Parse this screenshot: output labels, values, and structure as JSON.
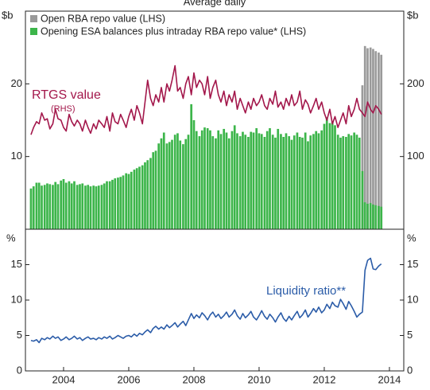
{
  "chart_data": [
    {
      "type": "bar",
      "title": "Average daily",
      "ylabel": "$b",
      "y2label": "$b",
      "legend": "top-left",
      "xlim": [
        2002.83,
        2014.44
      ],
      "ylim": [
        0,
        30
      ],
      "yticks": [
        10,
        20
      ],
      "y2lim": [
        0,
        300
      ],
      "y2ticks": [
        100,
        200
      ],
      "x": [
        2003,
        2003.08,
        2003.17,
        2003.25,
        2003.33,
        2003.42,
        2003.5,
        2003.58,
        2003.67,
        2003.75,
        2003.83,
        2003.92,
        2004,
        2004.08,
        2004.17,
        2004.25,
        2004.33,
        2004.42,
        2004.5,
        2004.58,
        2004.67,
        2004.75,
        2004.83,
        2004.92,
        2005,
        2005.08,
        2005.17,
        2005.25,
        2005.33,
        2005.42,
        2005.5,
        2005.58,
        2005.67,
        2005.75,
        2005.83,
        2005.92,
        2006,
        2006.08,
        2006.17,
        2006.25,
        2006.33,
        2006.42,
        2006.5,
        2006.58,
        2006.67,
        2006.75,
        2006.83,
        2006.92,
        2007,
        2007.08,
        2007.17,
        2007.25,
        2007.33,
        2007.42,
        2007.5,
        2007.58,
        2007.67,
        2007.75,
        2007.83,
        2007.92,
        2008,
        2008.08,
        2008.17,
        2008.25,
        2008.33,
        2008.42,
        2008.5,
        2008.58,
        2008.67,
        2008.75,
        2008.83,
        2008.92,
        2009,
        2009.08,
        2009.17,
        2009.25,
        2009.33,
        2009.42,
        2009.5,
        2009.58,
        2009.67,
        2009.75,
        2009.83,
        2009.92,
        2010,
        2010.08,
        2010.17,
        2010.25,
        2010.33,
        2010.42,
        2010.5,
        2010.58,
        2010.67,
        2010.75,
        2010.83,
        2010.92,
        2011,
        2011.08,
        2011.17,
        2011.25,
        2011.33,
        2011.42,
        2011.5,
        2011.58,
        2011.67,
        2011.75,
        2011.83,
        2011.92,
        2012,
        2012.08,
        2012.17,
        2012.25,
        2012.33,
        2012.42,
        2012.5,
        2012.58,
        2012.67,
        2012.75,
        2012.83,
        2012.92,
        2013,
        2013.08,
        2013.17,
        2013.25,
        2013.33,
        2013.42,
        2013.5,
        2013.58,
        2013.67,
        2013.75
      ],
      "series": [
        {
          "name": "Open RBA repo value (LHS)",
          "type": "bar",
          "color": "#9a9a9a",
          "x": [
            2013.17,
            2013.25,
            2013.33,
            2013.42,
            2013.5,
            2013.58,
            2013.67,
            2013.75
          ],
          "values": [
            19.8,
            25.2,
            24.9,
            25.0,
            24.8,
            24.5,
            24.3,
            24.0
          ]
        },
        {
          "name": "Opening ESA balances plus intraday RBA repo value* (LHS)",
          "type": "bar",
          "color": "#3cb54a",
          "values": [
            5.6,
            5.9,
            6.4,
            6.4,
            6.0,
            6.1,
            6.3,
            6.2,
            6.1,
            6.5,
            6.2,
            6.7,
            6.9,
            6.4,
            6.6,
            6.3,
            6.6,
            6.1,
            6.2,
            6.3,
            6.0,
            6.1,
            5.9,
            6.0,
            5.9,
            6.0,
            6.1,
            6.3,
            6.6,
            6.6,
            6.8,
            7.0,
            7.1,
            7.2,
            7.4,
            7.7,
            7.6,
            7.9,
            8.2,
            8.4,
            8.6,
            8.8,
            9.2,
            9.5,
            9.8,
            10.6,
            10.8,
            11.8,
            12.5,
            13.3,
            11.8,
            12.0,
            12.3,
            13.0,
            13.2,
            12.2,
            11.7,
            12.4,
            13.0,
            17.2,
            15.0,
            13.5,
            12.8,
            13.6,
            14.0,
            13.9,
            13.6,
            12.8,
            12.5,
            13.6,
            13.1,
            13.8,
            13.3,
            12.5,
            13.5,
            14.3,
            13.2,
            12.8,
            13.4,
            13.0,
            12.7,
            13.4,
            13.3,
            13.9,
            13.2,
            13.1,
            12.7,
            13.5,
            13.9,
            13.0,
            12.6,
            13.8,
            13.1,
            12.7,
            13.2,
            12.8,
            12.3,
            12.9,
            13.3,
            12.7,
            12.6,
            13.3,
            12.1,
            12.9,
            13.1,
            13.5,
            13.2,
            13.6,
            14.5,
            15.4,
            14.6,
            14.8,
            14.3,
            13.0,
            12.6,
            12.8,
            12.7,
            13.1,
            12.9,
            13.3,
            13.0,
            12.6,
            8.0,
            3.7,
            3.5,
            3.6,
            3.4,
            3.3,
            3.2,
            3.1
          ]
        },
        {
          "name": "RTGS value",
          "type": "line",
          "axis": "y2",
          "color": "#a3174b",
          "values": [
            130,
            140,
            148,
            145,
            160,
            150,
            152,
            138,
            145,
            165,
            152,
            150,
            140,
            135,
            158,
            148,
            142,
            150,
            145,
            135,
            150,
            140,
            132,
            145,
            138,
            150,
            145,
            140,
            155,
            135,
            160,
            148,
            145,
            158,
            150,
            140,
            155,
            165,
            150,
            170,
            160,
            145,
            175,
            205,
            180,
            170,
            185,
            175,
            195,
            175,
            200,
            190,
            205,
            225,
            190,
            195,
            180,
            200,
            210,
            185,
            215,
            195,
            205,
            200,
            185,
            210,
            180,
            195,
            205,
            185,
            175,
            190,
            170,
            185,
            175,
            190,
            165,
            180,
            170,
            160,
            175,
            165,
            180,
            170,
            175,
            185,
            170,
            165,
            180,
            172,
            190,
            168,
            175,
            165,
            180,
            170,
            185,
            170,
            175,
            190,
            165,
            178,
            172,
            160,
            170,
            180,
            165,
            175,
            160,
            150,
            165,
            145,
            155,
            140,
            150,
            160,
            145,
            170,
            155,
            165,
            180,
            165,
            160,
            155,
            175,
            165,
            160,
            170,
            165,
            158
          ]
        }
      ],
      "annotations": [
        "(RHS)"
      ]
    },
    {
      "type": "line",
      "ylabel": "%",
      "y2label": "%",
      "xlim": [
        2002.83,
        2014.44
      ],
      "xticks": [
        2004,
        2006,
        2008,
        2010,
        2012,
        2014
      ],
      "ylim": [
        0,
        20
      ],
      "yticks": [
        0,
        5,
        10,
        15
      ],
      "y2lim": [
        0,
        20
      ],
      "y2ticks": [
        0,
        5,
        10,
        15
      ],
      "x": [
        2003,
        2003.08,
        2003.17,
        2003.25,
        2003.33,
        2003.42,
        2003.5,
        2003.58,
        2003.67,
        2003.75,
        2003.83,
        2003.92,
        2004,
        2004.08,
        2004.17,
        2004.25,
        2004.33,
        2004.42,
        2004.5,
        2004.58,
        2004.67,
        2004.75,
        2004.83,
        2004.92,
        2005,
        2005.08,
        2005.17,
        2005.25,
        2005.33,
        2005.42,
        2005.5,
        2005.58,
        2005.67,
        2005.75,
        2005.83,
        2005.92,
        2006,
        2006.08,
        2006.17,
        2006.25,
        2006.33,
        2006.42,
        2006.5,
        2006.58,
        2006.67,
        2006.75,
        2006.83,
        2006.92,
        2007,
        2007.08,
        2007.17,
        2007.25,
        2007.33,
        2007.42,
        2007.5,
        2007.58,
        2007.67,
        2007.75,
        2007.83,
        2007.92,
        2008,
        2008.08,
        2008.17,
        2008.25,
        2008.33,
        2008.42,
        2008.5,
        2008.58,
        2008.67,
        2008.75,
        2008.83,
        2008.92,
        2009,
        2009.08,
        2009.17,
        2009.25,
        2009.33,
        2009.42,
        2009.5,
        2009.58,
        2009.67,
        2009.75,
        2009.83,
        2009.92,
        2010,
        2010.08,
        2010.17,
        2010.25,
        2010.33,
        2010.42,
        2010.5,
        2010.58,
        2010.67,
        2010.75,
        2010.83,
        2010.92,
        2011,
        2011.08,
        2011.17,
        2011.25,
        2011.33,
        2011.42,
        2011.5,
        2011.58,
        2011.67,
        2011.75,
        2011.83,
        2011.92,
        2012,
        2012.08,
        2012.17,
        2012.25,
        2012.33,
        2012.42,
        2012.5,
        2012.58,
        2012.67,
        2012.75,
        2012.83,
        2012.92,
        2013,
        2013.08,
        2013.17,
        2013.25,
        2013.33,
        2013.42,
        2013.5,
        2013.58,
        2013.67,
        2013.75
      ],
      "series": [
        {
          "name": "Liquidity ratio**",
          "color": "#2b5ca8",
          "values": [
            4.3,
            4.2,
            4.4,
            4.0,
            4.6,
            4.4,
            4.7,
            4.5,
            4.9,
            4.6,
            4.8,
            4.3,
            4.5,
            4.8,
            4.4,
            4.6,
            4.9,
            4.5,
            4.7,
            4.3,
            4.6,
            4.8,
            4.5,
            4.6,
            4.4,
            4.7,
            4.5,
            4.8,
            4.6,
            4.9,
            4.5,
            4.7,
            5.0,
            4.8,
            4.6,
            4.9,
            5.0,
            4.8,
            5.2,
            4.9,
            5.3,
            5.1,
            5.5,
            5.8,
            5.4,
            6.0,
            6.3,
            5.9,
            6.2,
            5.9,
            6.5,
            6.1,
            6.4,
            6.8,
            6.2,
            6.6,
            7.0,
            6.4,
            7.2,
            8.1,
            7.4,
            7.9,
            7.5,
            8.2,
            7.8,
            7.2,
            7.9,
            8.3,
            7.6,
            8.0,
            7.4,
            7.8,
            8.3,
            7.6,
            8.0,
            8.6,
            7.8,
            7.3,
            8.1,
            7.5,
            7.9,
            8.4,
            7.6,
            7.2,
            7.8,
            8.5,
            7.7,
            7.3,
            8.0,
            7.5,
            6.9,
            7.6,
            8.2,
            7.4,
            7.0,
            7.7,
            7.2,
            7.8,
            8.4,
            7.5,
            7.9,
            8.6,
            7.6,
            8.1,
            8.8,
            8.3,
            9.0,
            8.2,
            8.6,
            9.4,
            8.8,
            9.7,
            9.2,
            9.0,
            10.1,
            9.5,
            8.7,
            9.8,
            9.2,
            8.4,
            7.6,
            8.0,
            8.3,
            14.2,
            15.6,
            15.9,
            14.4,
            14.3,
            14.8,
            15.1
          ]
        }
      ]
    }
  ]
}
